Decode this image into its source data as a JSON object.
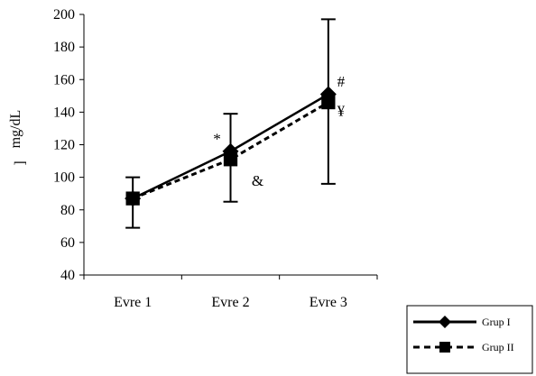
{
  "chart_data": {
    "type": "line",
    "title": "",
    "xlabel": "",
    "ylabel": "mg/dL",
    "ylabel_prefix": "]",
    "categories": [
      "Evre 1",
      "Evre 2",
      "Evre 3"
    ],
    "ylim": [
      40,
      200
    ],
    "yticks": [
      40,
      60,
      80,
      100,
      120,
      140,
      160,
      180,
      200
    ],
    "grid": false,
    "legend_position": "bottom-right",
    "series": [
      {
        "name": "Grup I",
        "marker": "diamond",
        "line_style": "solid",
        "values": [
          87,
          116,
          151
        ],
        "error_upper": [
          100,
          139,
          197
        ],
        "error_lower": [
          69,
          85,
          96
        ]
      },
      {
        "name": "Grup II",
        "marker": "square",
        "line_style": "dashed",
        "values": [
          87,
          111,
          146
        ],
        "error_upper": [
          100,
          139,
          197
        ],
        "error_lower": [
          69,
          85,
          96
        ]
      }
    ],
    "annotations": [
      {
        "text": "*",
        "category": "Evre 2",
        "y": 124
      },
      {
        "text": "&",
        "category": "Evre 2",
        "y": 98
      },
      {
        "text": "#",
        "category": "Evre 3",
        "y": 159
      },
      {
        "text": "¥",
        "category": "Evre 3",
        "y": 141
      }
    ]
  }
}
